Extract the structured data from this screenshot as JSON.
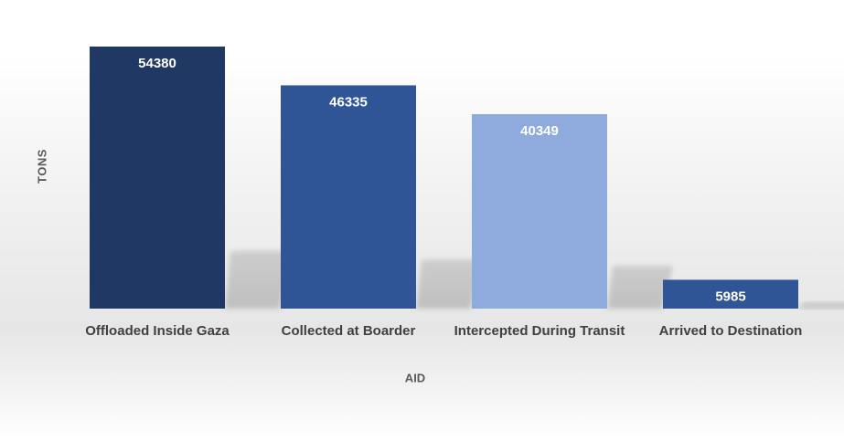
{
  "chart_data": {
    "type": "bar",
    "categories": [
      "Offloaded Inside Gaza",
      "Collected at Boarder",
      "Intercepted During Transit",
      "Arrived to Destination"
    ],
    "values": [
      54380,
      46335,
      40349,
      5985
    ],
    "data_labels": [
      "54380",
      "46335",
      "40349",
      "5985"
    ],
    "bar_colors": [
      "#1f3864",
      "#2f5597",
      "#8faadc",
      "#2f5597"
    ],
    "label_color": "#ffffff",
    "title": "",
    "xlabel": "AID",
    "ylabel": "TONS",
    "ylim": [
      0,
      54380
    ],
    "grid": false,
    "legend": "none"
  }
}
